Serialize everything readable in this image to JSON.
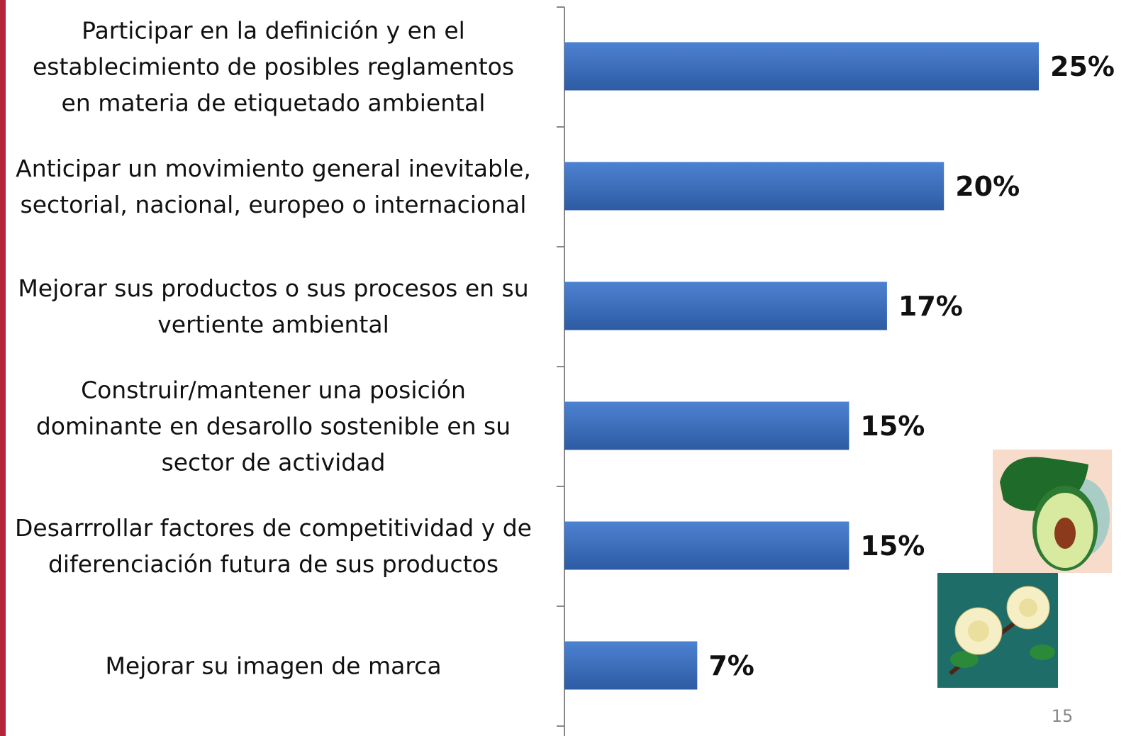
{
  "chart_data": {
    "type": "bar",
    "orientation": "horizontal",
    "categories": [
      "Participar en la definición y en el\nestablecimiento de posibles  reglamentos\nen materia de etiquetado ambiental",
      "Anticipar un movimiento general inevitable,\nsectorial, nacional, europeo o internacional",
      "Mejorar sus productos o sus procesos en su\nvertiente ambiental",
      "Construir/mantener una posición\ndominante en desarollo sostenible en su\nsector de actividad",
      "Desarrrollar factores de competitividad y de\ndiferenciación futura de sus productos",
      "Mejorar su imagen de marca"
    ],
    "values": [
      25,
      20,
      17,
      15,
      15,
      7
    ],
    "value_labels": [
      "25%",
      "20%",
      "17%",
      "15%",
      "15%",
      "7%"
    ],
    "color": "#3a6fc0",
    "xlim": [
      0,
      25
    ]
  },
  "page_number": "15"
}
